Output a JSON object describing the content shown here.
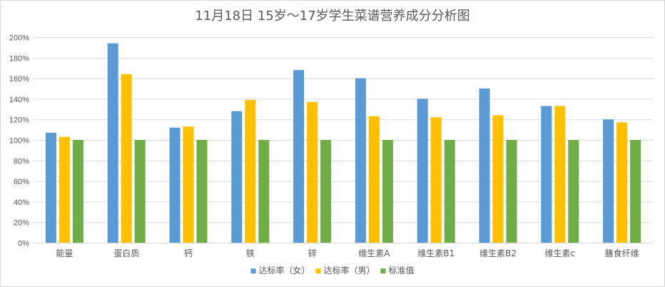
{
  "chart_data": {
    "type": "bar",
    "title": "11月18日 15岁～17岁学生菜谱营养成分分析图",
    "categories": [
      "能量",
      "蛋白质",
      "钙",
      "铁",
      "锌",
      "维生素A",
      "维生素B1",
      "维生素B2",
      "维生素c",
      "膳食纤维"
    ],
    "series": [
      {
        "name": "达标率（女）",
        "color": "#5b9bd5",
        "values": [
          107,
          194,
          112,
          128,
          168,
          160,
          140,
          150,
          133,
          120
        ]
      },
      {
        "name": "达标率（男）",
        "color": "#ffc000",
        "values": [
          103,
          164,
          113,
          139,
          137,
          123,
          122,
          124,
          133,
          117
        ]
      },
      {
        "name": "标准值",
        "color": "#70ad47",
        "values": [
          100,
          100,
          100,
          100,
          100,
          100,
          100,
          100,
          100,
          100
        ]
      }
    ],
    "ylim": [
      0,
      200
    ],
    "ytick_step": 20,
    "ytick_suffix": "%",
    "grid": true,
    "legend_position": "bottom"
  }
}
